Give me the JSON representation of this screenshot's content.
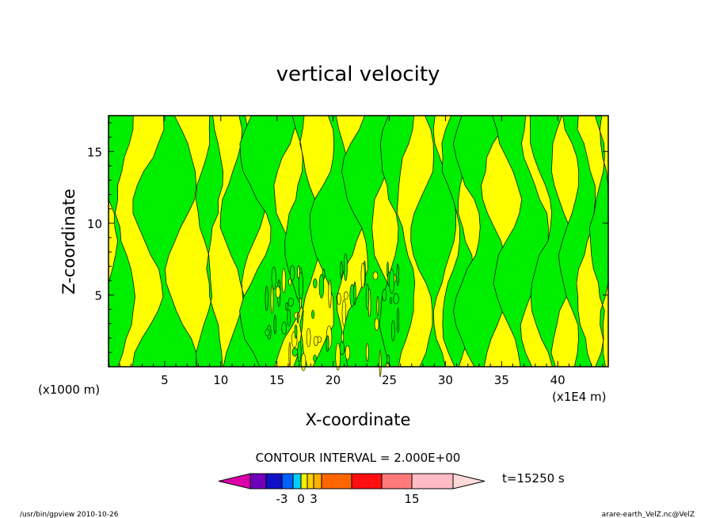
{
  "chart_data": {
    "type": "heatmap",
    "title": "vertical velocity",
    "xlabel": "X-coordinate",
    "ylabel": "Z-coordinate",
    "x_unit_left": "(x1000 m)",
    "x_unit_right": "(x1E4 m)",
    "xlim": [
      0,
      44.5
    ],
    "ylim": [
      0,
      17.5
    ],
    "x_ticks": [
      5,
      10,
      15,
      20,
      25,
      30,
      35,
      40
    ],
    "y_ticks": [
      5,
      10,
      15
    ],
    "contour_interval": "CONTOUR INTERVAL = 2.000E+00",
    "time_label": "t=15250 s",
    "colorbar": {
      "labels": [
        {
          "text": "-3",
          "index": 3
        },
        {
          "text": "0",
          "index": 5
        },
        {
          "text": "3",
          "index": 7
        },
        {
          "text": "15",
          "index": 11
        }
      ],
      "colors": [
        "#dd00aa",
        "#7000bb",
        "#1010c8",
        "#0060ff",
        "#00d0ff",
        "#f0f000",
        "#ffd000",
        "#ffb000",
        "#ff6600",
        "#ff1010",
        "#ff7a7a",
        "#ffbcc4",
        "#ffd8d8"
      ]
    },
    "field": {
      "positive_color": "#ffff00",
      "negative_color": "#00ee00",
      "negative_regions_x_ranges": [
        [
          0,
          1.5
        ],
        [
          3.5,
          6.5
        ],
        [
          8.5,
          9.5
        ],
        [
          11,
          13
        ],
        [
          13,
          16
        ],
        [
          16.5,
          18
        ],
        [
          19,
          21.5
        ],
        [
          22,
          24.5
        ],
        [
          25,
          26.5
        ],
        [
          28,
          30
        ],
        [
          30.5,
          32
        ],
        [
          32,
          34.5
        ],
        [
          35.5,
          38
        ],
        [
          38.5,
          40.5
        ],
        [
          41,
          42.5
        ],
        [
          43.5,
          44.5
        ]
      ]
    }
  },
  "footer": {
    "left": "/usr/bin/gpview   2010-10-26",
    "right": "arare-earth_VelZ.nc@VelZ"
  }
}
